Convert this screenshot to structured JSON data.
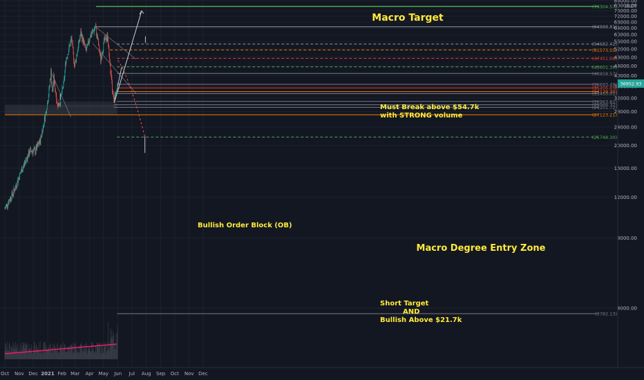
{
  "chart_data": {
    "type": "candlestick",
    "title": "",
    "currency": "USDT",
    "ylim": [
      3000,
      84000
    ],
    "y_scale": "log",
    "yticks": [
      4000,
      8000,
      12000,
      16000,
      20000,
      24000,
      28000,
      32000,
      36000,
      40000,
      44000,
      48000,
      52000,
      56000,
      60000,
      64000,
      68000,
      72000,
      76000,
      80000,
      84000
    ],
    "ytick_labels": [
      "4000.00",
      "8000.00",
      "12000.00",
      "16000.00",
      "20000.00",
      "24000.00",
      "28000.00",
      "32000.00",
      "36000.00",
      "40000.00",
      "44000.00",
      "48000.00",
      "52000.00",
      "56000.00",
      "60000.00",
      "64000.00",
      "68000.00",
      "72000.00",
      "76000.00",
      "80000.00",
      "84000.00"
    ],
    "xticks": [
      "Oct",
      "Nov",
      "Dec",
      "2021",
      "Feb",
      "Mar",
      "Apr",
      "May",
      "Jun",
      "Jul",
      "Aug",
      "Sep",
      "Oct",
      "Nov",
      "Dec"
    ],
    "price_path": [
      [
        "2020-10-01",
        10700
      ],
      [
        "2020-10-21",
        12800
      ],
      [
        "2020-11-05",
        15500
      ],
      [
        "2020-11-24",
        19000
      ],
      [
        "2020-12-05",
        18900
      ],
      [
        "2020-12-16",
        21000
      ],
      [
        "2020-12-27",
        27000
      ],
      [
        "2021-01-03",
        33000
      ],
      [
        "2021-01-08",
        41500
      ],
      [
        "2021-01-11",
        33500
      ],
      [
        "2021-01-14",
        39000
      ],
      [
        "2021-01-22",
        30000
      ],
      [
        "2021-01-27",
        30500
      ],
      [
        "2021-02-05",
        37500
      ],
      [
        "2021-02-09",
        46500
      ],
      [
        "2021-02-21",
        57500
      ],
      [
        "2021-02-28",
        44000
      ],
      [
        "2021-03-13",
        61000
      ],
      [
        "2021-03-25",
        51000
      ],
      [
        "2021-04-02",
        59000
      ],
      [
        "2021-04-14",
        64800
      ],
      [
        "2021-04-25",
        47000
      ],
      [
        "2021-05-03",
        57000
      ],
      [
        "2021-05-10",
        59000
      ],
      [
        "2021-05-13",
        49500
      ],
      [
        "2021-05-19",
        36000
      ],
      [
        "2021-05-23",
        31000
      ],
      [
        "2021-05-29",
        35000
      ],
      [
        "2021-05-31",
        36950
      ]
    ],
    "last_price": 36952.93,
    "levels": [
      {
        "label": "(79304.57)",
        "value": 79304.57,
        "color": "#4caf50",
        "style": "solid",
        "note": "Macro Target"
      },
      {
        "label": "(64888.81)",
        "value": 64888.81,
        "color": "#9598a1",
        "style": "solid"
      },
      {
        "label": "(54682.42)",
        "value": 54682.42,
        "color": "#9598a1",
        "style": "dashed"
      },
      {
        "label": "(51573.55)",
        "value": 51573.55,
        "color": "#f57c00",
        "style": "dashed"
      },
      {
        "label": "(47451.68)",
        "value": 47451.68,
        "color": "#e53935",
        "style": "dashed"
      },
      {
        "label": "(43601.36)",
        "value": 43601.36,
        "color": "#4caf50",
        "style": "dashed"
      },
      {
        "label": "(40858.57)",
        "value": 40858.57,
        "color": "#787b86",
        "style": "solid"
      },
      {
        "label": "(36693.49)",
        "value": 36693.49,
        "color": "#787b86",
        "style": "solid"
      },
      {
        "label": "(35406.85)",
        "value": 35406.85,
        "color": "#e53935",
        "style": "solid"
      },
      {
        "label": "(34129.30)",
        "value": 34129.3,
        "color": "#f57c00",
        "style": "solid"
      },
      {
        "label": "(33450.01)",
        "value": 33450.01,
        "color": "#787b86",
        "style": "solid"
      },
      {
        "label": "(30963.82)",
        "value": 30963.82,
        "color": "#787b86",
        "style": "solid"
      },
      {
        "label": "(29966.32)",
        "value": 29966.32,
        "color": "#787b86",
        "style": "solid"
      },
      {
        "label": "(29201.72)",
        "value": 29201.72,
        "color": "#787b86",
        "style": "solid"
      },
      {
        "label": "(27123.21)",
        "value": 27123.21,
        "color": "#f57c00",
        "style": "solid"
      },
      {
        "label": "(21748.30)",
        "value": 21748.3,
        "color": "#4caf50",
        "style": "dashed"
      },
      {
        "label": "(3782.13)",
        "value": 3782.13,
        "color": "#787b86",
        "style": "solid"
      }
    ],
    "annotations": [
      {
        "text": "Macro Target",
        "color": "#ffeb3b"
      },
      {
        "text": "Must Break above $54.7k",
        "color": "#ffeb3b"
      },
      {
        "text": "with STRONG volume",
        "color": "#ffeb3b"
      },
      {
        "text": "Bullish Order Block (OB)",
        "color": "#ffeb3b"
      },
      {
        "text": "Macro Degree Entry Zone",
        "color": "#ffeb3b"
      },
      {
        "text": "Short Target",
        "color": "#ffeb3b"
      },
      {
        "text": "AND",
        "color": "#ffeb3b"
      },
      {
        "text": "Bullish Above $21.7k",
        "color": "#ffeb3b"
      }
    ],
    "colors": {
      "background": "#131722",
      "up": "#26a69a",
      "down": "#ef5350",
      "grid": "#1e222d",
      "annotation": "#ffeb3b"
    },
    "grid": true
  }
}
